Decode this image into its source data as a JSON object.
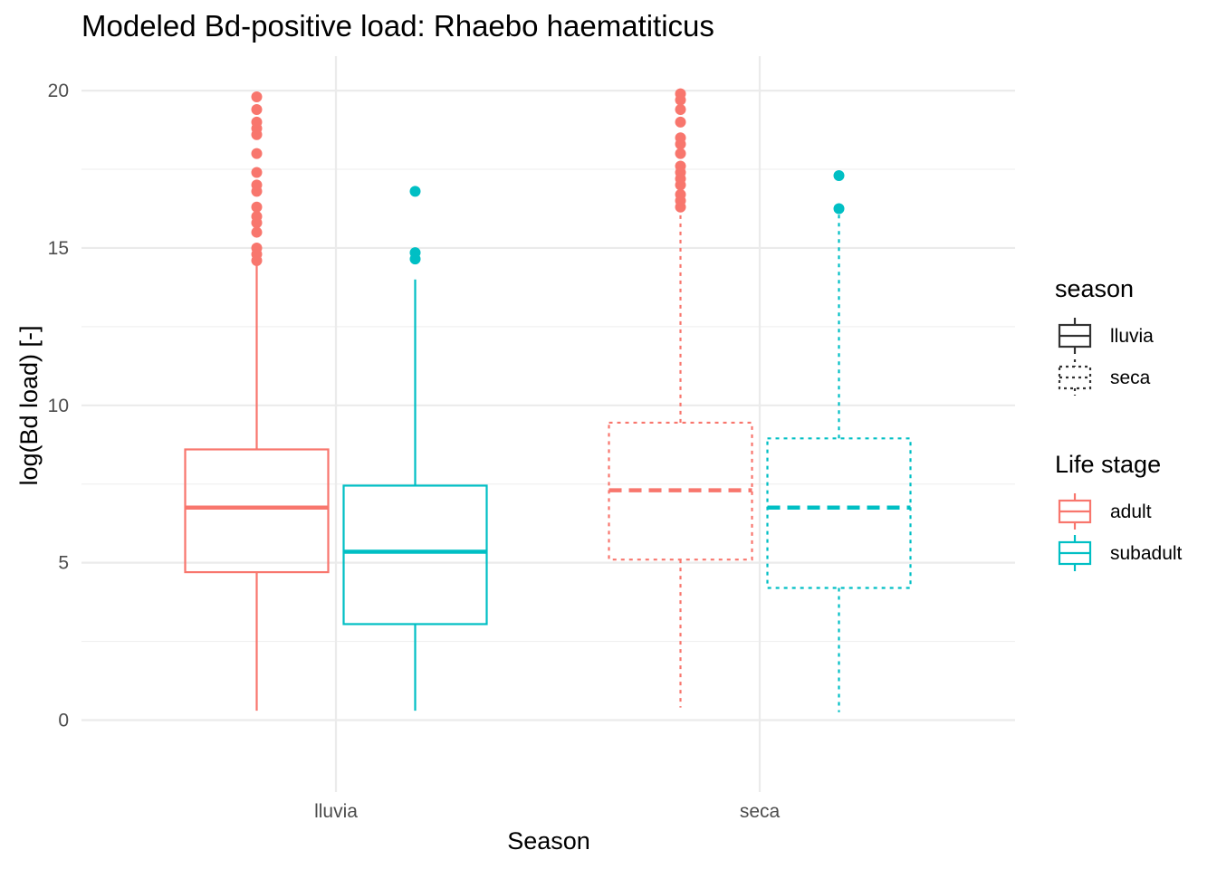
{
  "chart_data": {
    "type": "boxplot",
    "title": "Modeled Bd-positive load: Rhaebo haematiticus",
    "xlabel": "Season",
    "ylabel": "log(Bd load) [-]",
    "ylim": [
      -2.2,
      21.1
    ],
    "yticks": [
      0,
      5,
      10,
      15,
      20
    ],
    "categories": [
      "lluvia",
      "seca"
    ],
    "grid": true,
    "legend_position": "right",
    "legends": [
      {
        "title": "season",
        "entries": [
          {
            "label": "lluvia",
            "linetype": "solid",
            "color": "#333333"
          },
          {
            "label": "seca",
            "linetype": "dotted",
            "color": "#333333"
          }
        ]
      },
      {
        "title": "Life stage",
        "entries": [
          {
            "label": "adult",
            "linetype": "solid",
            "color": "#F8766D"
          },
          {
            "label": "subadult",
            "linetype": "solid",
            "color": "#00BFC4"
          }
        ]
      }
    ],
    "series": [
      {
        "name": "adult",
        "color": "#F8766D",
        "boxes": [
          {
            "category": "lluvia",
            "season": "lluvia",
            "linetype": "solid",
            "lower_whisker": 0.3,
            "q1": 4.7,
            "median": 6.75,
            "q3": 8.6,
            "upper_whisker": 14.5,
            "outliers": [
              14.6,
              14.8,
              15.0,
              15.5,
              15.8,
              16.0,
              16.3,
              16.8,
              17.0,
              17.4,
              18.0,
              18.6,
              18.8,
              19.0,
              19.4,
              19.8
            ]
          },
          {
            "category": "seca",
            "season": "seca",
            "linetype": "dotted",
            "lower_whisker": 0.4,
            "q1": 5.1,
            "median": 7.3,
            "q3": 9.45,
            "upper_whisker": 16.2,
            "outliers": [
              16.3,
              16.5,
              16.7,
              17.0,
              17.2,
              17.4,
              17.6,
              18.0,
              18.3,
              18.5,
              19.0,
              19.4,
              19.7,
              19.9
            ]
          }
        ]
      },
      {
        "name": "subadult",
        "color": "#00BFC4",
        "boxes": [
          {
            "category": "lluvia",
            "season": "lluvia",
            "linetype": "solid",
            "lower_whisker": 0.3,
            "q1": 3.05,
            "median": 5.35,
            "q3": 7.45,
            "upper_whisker": 14.0,
            "outliers": [
              14.65,
              14.85,
              16.8
            ]
          },
          {
            "category": "seca",
            "season": "seca",
            "linetype": "dotted",
            "lower_whisker": 0.25,
            "q1": 4.2,
            "median": 6.75,
            "q3": 8.95,
            "upper_whisker": 16.2,
            "outliers": [
              16.25,
              17.3
            ]
          }
        ]
      }
    ]
  }
}
